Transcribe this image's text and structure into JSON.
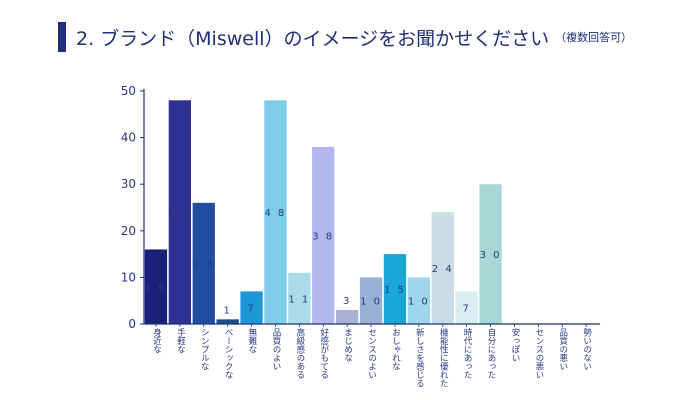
{
  "title": {
    "main": "2. ブランド（Miswell）のイメージをお聞かせください",
    "sub": "（複数回答可）"
  },
  "colors": {
    "accent": "#1f2f7a",
    "text": "#2a3a8a",
    "axis": "#1f2f7a"
  },
  "chart_data": {
    "type": "bar",
    "ylim": [
      0,
      50
    ],
    "yticks": [
      0,
      10,
      20,
      30,
      40,
      50
    ],
    "categories": [
      "身近な",
      "手軽な",
      "シンプルな",
      "ベーシックな",
      "無難な",
      "品質のよい",
      "高級感のある",
      "好感がもてる",
      "まじめな",
      "センスのよい",
      "おしゃれな",
      "新しさを感じる",
      "機能性に優れた",
      "時代にあった",
      "自分にあった",
      "安っぽい",
      "センスの悪い",
      "品質の悪い",
      "勢いのない"
    ],
    "values": [
      16,
      48,
      26,
      1,
      7,
      48,
      11,
      38,
      3,
      10,
      15,
      10,
      24,
      7,
      30,
      0,
      0,
      0,
      0
    ],
    "value_labels": [
      "1 6",
      "4 8",
      "2 6",
      "1",
      "7",
      "4 8",
      "1 1",
      "3 8",
      "3",
      "1 0",
      "1 5",
      "1 0",
      "2 4",
      "7",
      "3 0",
      "",
      "",
      "",
      ""
    ],
    "colors": [
      "#1a1f7a",
      "#2e3192",
      "#1f4ea1",
      "#1a4f8a",
      "#1f96d6",
      "#7ecbea",
      "#a9dce8",
      "#b2b8ee",
      "#aab0d2",
      "#99afd3",
      "#1aa7d6",
      "#9ed6ec",
      "#c9dde4",
      "#d9eef0",
      "#a8d8d4",
      "#ffffff",
      "#ffffff",
      "#ffffff",
      "#ffffff"
    ],
    "grid": false
  }
}
